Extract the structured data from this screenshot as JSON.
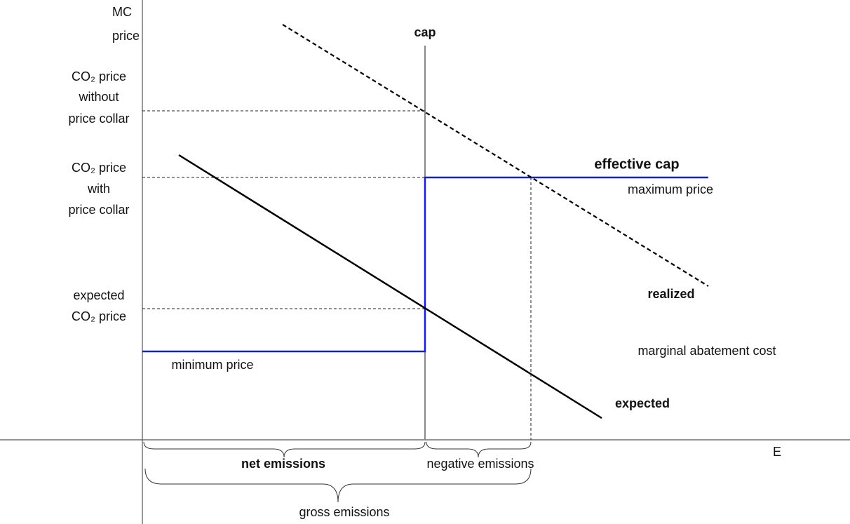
{
  "axes": {
    "y_label": [
      "MC",
      "price"
    ],
    "x_label": "E"
  },
  "labels": {
    "cap": "cap",
    "price_without_collar": [
      "CO₂ price",
      "without",
      "price collar"
    ],
    "price_with_collar": [
      "CO₂ price",
      "with",
      "price collar"
    ],
    "expected_price": [
      "expected",
      "CO₂ price"
    ],
    "effective_cap": "effective cap",
    "maximum_price": "maximum price",
    "realized": "realized",
    "marginal_abatement_cost": "marginal abatement cost",
    "minimum_price": "minimum price",
    "expected": "expected",
    "net_emissions": "net emissions",
    "negative_emissions": "negative emissions",
    "gross_emissions": "gross emissions"
  }
}
